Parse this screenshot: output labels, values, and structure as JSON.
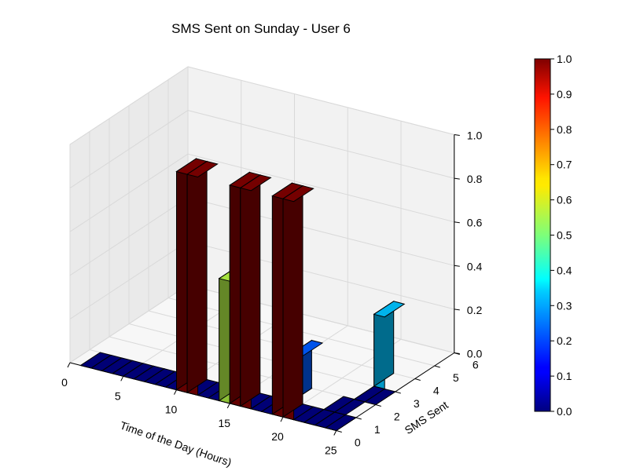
{
  "chart_data": {
    "type": "bar3d",
    "title": "SMS Sent on Sunday - User 6",
    "xlabel": "Time of the Day (Hours)",
    "ylabel": "SMS Sent",
    "zlabel": "",
    "xlim": [
      0,
      25
    ],
    "ylim": [
      0,
      6
    ],
    "zlim": [
      0,
      1.0
    ],
    "x_ticks": [
      "0",
      "5",
      "10",
      "15",
      "20",
      "25"
    ],
    "y_ticks": [
      "0",
      "1",
      "2",
      "3",
      "4",
      "5",
      "6"
    ],
    "z_ticks": [
      "0.0",
      "0.2",
      "0.4",
      "0.6",
      "0.8",
      "1.0"
    ],
    "colormap": "jet",
    "colorbar_ticks": [
      "0.0",
      "0.1",
      "0.2",
      "0.3",
      "0.4",
      "0.5",
      "0.6",
      "0.7",
      "0.8",
      "0.9",
      "1.0"
    ],
    "bars": [
      {
        "x": 10,
        "y": 0,
        "z": 1.0
      },
      {
        "x": 11,
        "y": 0,
        "z": 1.0
      },
      {
        "x": 14,
        "y": 0,
        "z": 0.56
      },
      {
        "x": 15,
        "y": 0,
        "z": 1.0
      },
      {
        "x": 16,
        "y": 0,
        "z": 1.0
      },
      {
        "x": 19,
        "y": 0,
        "z": 1.0
      },
      {
        "x": 20,
        "y": 0,
        "z": 1.0
      },
      {
        "x": 19,
        "y": 1,
        "z": 0.22
      },
      {
        "x": 23,
        "y": 3,
        "z": 0.33
      }
    ],
    "grid": true
  }
}
